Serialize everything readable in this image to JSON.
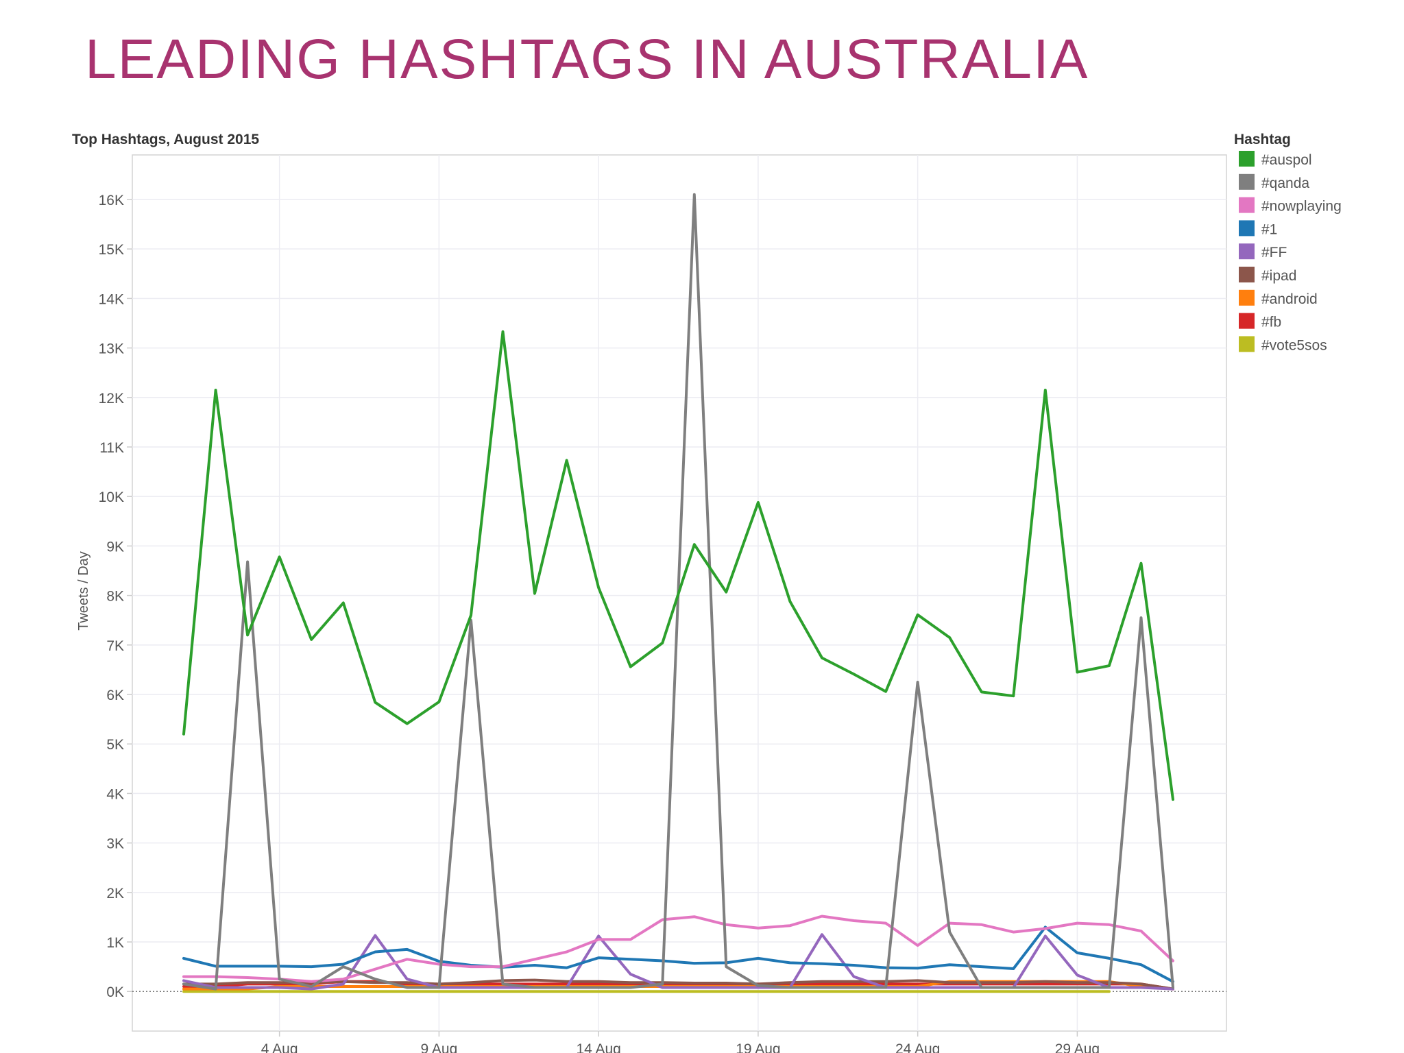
{
  "page": {
    "title": "LEADING HASHTAGS IN AUSTRALIA"
  },
  "colors": {
    "title": "#a8336f"
  },
  "chart_data": {
    "type": "line",
    "title": "Top Hashtags, August 2015",
    "xlabel": "",
    "ylabel": "Tweets / Day",
    "x": [
      "1 Aug",
      "2 Aug",
      "3 Aug",
      "4 Aug",
      "5 Aug",
      "6 Aug",
      "7 Aug",
      "8 Aug",
      "9 Aug",
      "10 Aug",
      "11 Aug",
      "12 Aug",
      "13 Aug",
      "14 Aug",
      "15 Aug",
      "16 Aug",
      "17 Aug",
      "18 Aug",
      "19 Aug",
      "20 Aug",
      "21 Aug",
      "22 Aug",
      "23 Aug",
      "24 Aug",
      "25 Aug",
      "26 Aug",
      "27 Aug",
      "28 Aug",
      "29 Aug",
      "30 Aug",
      "31 Aug",
      "1 Sep"
    ],
    "x_ticks": [
      "4 Aug",
      "9 Aug",
      "14 Aug",
      "19 Aug",
      "24 Aug",
      "29 Aug"
    ],
    "y_ticks": [
      "16K",
      "15K",
      "14K",
      "13K",
      "12K",
      "11K",
      "10K",
      "9K",
      "8K",
      "7K",
      "6K",
      "5K",
      "4K",
      "3K",
      "2K",
      "1K",
      "0K"
    ],
    "ylim": [
      -800,
      16900
    ],
    "grid": true,
    "legend": {
      "title": "Hashtag",
      "position": "right"
    },
    "series": [
      {
        "name": "#auspol",
        "color": "#2ca02c",
        "values": [
          5200,
          12150,
          7200,
          8780,
          7110,
          7850,
          5840,
          5410,
          5850,
          7600,
          13330,
          8040,
          10730,
          8160,
          6560,
          7040,
          9030,
          8070,
          9880,
          7880,
          6740,
          6410,
          6060,
          7610,
          7150,
          6050,
          5970,
          12150,
          6450,
          6580,
          8650,
          3880
        ]
      },
      {
        "name": "#qanda",
        "color": "#7f7f7f",
        "values": [
          150,
          50,
          8680,
          250,
          100,
          500,
          250,
          80,
          80,
          7500,
          150,
          80,
          80,
          80,
          80,
          150,
          16100,
          500,
          120,
          80,
          80,
          80,
          80,
          6250,
          1200,
          80,
          80,
          80,
          80,
          80,
          7550,
          80
        ]
      },
      {
        "name": "#nowplaying",
        "color": "#e377c2",
        "values": [
          300,
          300,
          280,
          250,
          200,
          250,
          450,
          650,
          550,
          500,
          500,
          650,
          800,
          1050,
          1050,
          1450,
          1510,
          1350,
          1280,
          1330,
          1520,
          1430,
          1380,
          930,
          1380,
          1350,
          1200,
          1270,
          1380,
          1350,
          1220,
          620
        ]
      },
      {
        "name": "#1",
        "color": "#1f77b4",
        "values": [
          670,
          510,
          510,
          510,
          500,
          550,
          800,
          850,
          610,
          530,
          490,
          530,
          480,
          680,
          650,
          620,
          570,
          580,
          670,
          580,
          560,
          530,
          480,
          470,
          540,
          500,
          460,
          1300,
          780,
          670,
          540,
          200
        ]
      },
      {
        "name": "#FF",
        "color": "#9467bd",
        "values": [
          220,
          80,
          80,
          80,
          50,
          150,
          1130,
          250,
          80,
          80,
          80,
          80,
          80,
          1120,
          350,
          80,
          80,
          80,
          80,
          80,
          1150,
          300,
          80,
          80,
          80,
          80,
          80,
          1120,
          330,
          80,
          80,
          50
        ]
      },
      {
        "name": "#ipad",
        "color": "#8c564b",
        "values": [
          150,
          150,
          180,
          180,
          180,
          200,
          180,
          180,
          150,
          180,
          220,
          230,
          200,
          200,
          180,
          180,
          170,
          170,
          150,
          180,
          200,
          200,
          200,
          220,
          180,
          180,
          180,
          200,
          180,
          180,
          150,
          50
        ]
      },
      {
        "name": "#android",
        "color": "#ff7f0e",
        "values": [
          50,
          50,
          50,
          100,
          100,
          100,
          100,
          100,
          100,
          100,
          100,
          100,
          100,
          100,
          100,
          100,
          100,
          100,
          100,
          100,
          100,
          100,
          100,
          100,
          200,
          200,
          200,
          200,
          200,
          200,
          100,
          50
        ]
      },
      {
        "name": "#fb",
        "color": "#d62728",
        "values": [
          100,
          100,
          150,
          150,
          150,
          200,
          200,
          150,
          100,
          150,
          150,
          150,
          150,
          150,
          150,
          150,
          150,
          150,
          150,
          150,
          150,
          150,
          150,
          150,
          150,
          150,
          150,
          150,
          150,
          150,
          150,
          50
        ]
      },
      {
        "name": "#vote5sos",
        "color": "#bcbd22",
        "values": [
          0,
          0,
          0,
          0,
          0,
          0,
          0,
          0,
          0,
          0,
          0,
          0,
          0,
          0,
          0,
          0,
          0,
          0,
          0,
          0,
          0,
          0,
          0,
          0,
          0,
          0,
          0,
          0,
          0,
          0,
          null,
          null
        ]
      }
    ]
  }
}
